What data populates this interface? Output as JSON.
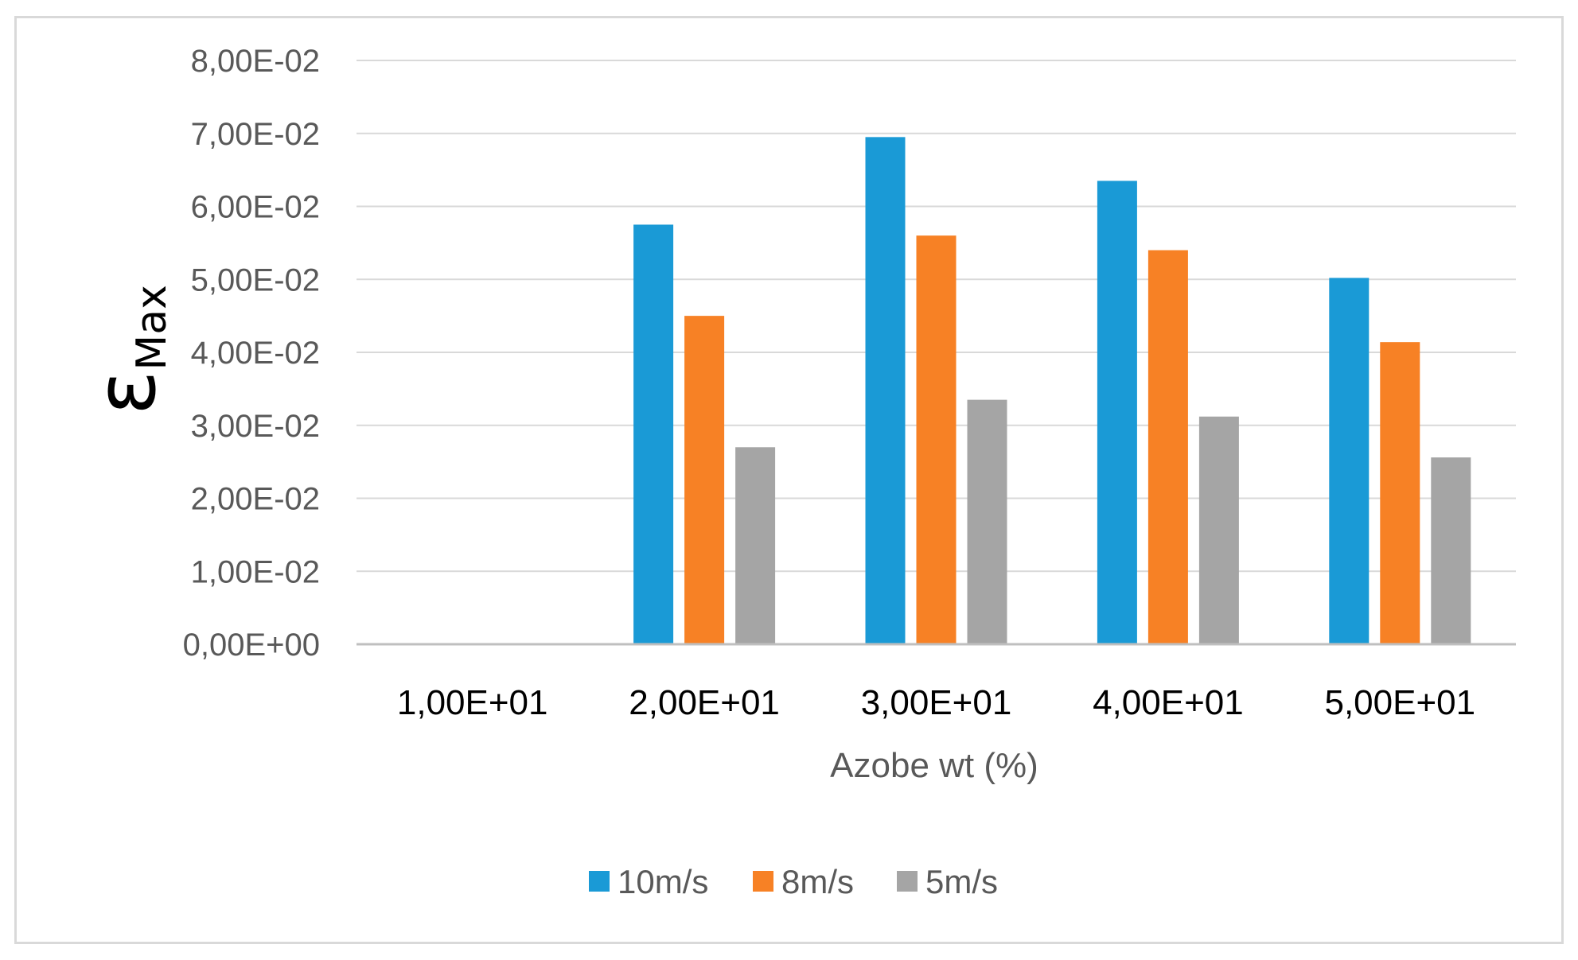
{
  "chart_data": {
    "type": "bar",
    "title": "",
    "xlabel": "Azobe wt (%)",
    "ylabel": {
      "main": "ε",
      "subscript": "Max"
    },
    "categories": [
      "1,00E+01",
      "2,00E+01",
      "3,00E+01",
      "4,00E+01",
      "5,00E+01"
    ],
    "series": [
      {
        "name": "10m/s",
        "color": "#1a9ad6",
        "values": [
          0,
          0.0575,
          0.0695,
          0.0635,
          0.0502
        ]
      },
      {
        "name": "8m/s",
        "color": "#f78125",
        "values": [
          0,
          0.045,
          0.056,
          0.054,
          0.0414
        ]
      },
      {
        "name": "5m/s",
        "color": "#a5a5a5",
        "values": [
          0,
          0.027,
          0.0335,
          0.0312,
          0.0256
        ]
      }
    ],
    "ylim": [
      0,
      0.08
    ],
    "ytick_values": [
      0,
      0.01,
      0.02,
      0.03,
      0.04,
      0.05,
      0.06,
      0.07,
      0.08
    ],
    "ytick_labels": [
      "0,00E+00",
      "1,00E-02",
      "2,00E-02",
      "3,00E-02",
      "4,00E-02",
      "5,00E-02",
      "6,00E-02",
      "7,00E-02",
      "8,00E-02"
    ],
    "grid": true,
    "legend_position": "bottom"
  }
}
